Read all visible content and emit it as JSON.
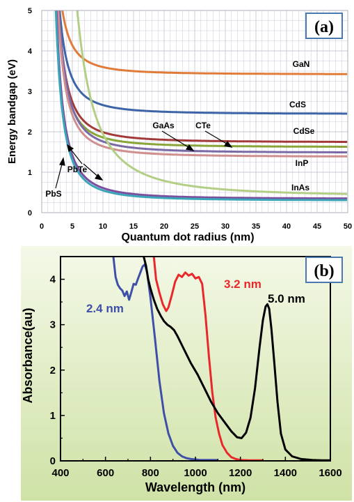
{
  "colors": {
    "GaN": "#e07b39",
    "CdS": "#3d64a6",
    "CdSe": "#a33a3a",
    "CTe": "#8aa53a",
    "GaAs": "#7a6aa6",
    "InP": "#d08f8f",
    "InAs": "#b3cf86",
    "PbTe": "#7b4f9e",
    "PbS": "#3aa6b8",
    "grid": "#c8c8d8",
    "panel_label_border": "#4a78b0",
    "bg_b_top": "#f4f9e8",
    "bg_b_bottom": "#cfe2a6",
    "curve_24": "#3f4fa8",
    "curve_32": "#e8282a",
    "curve_50": "#000000"
  },
  "chart_data": [
    {
      "type": "line",
      "panel_label": "(a)",
      "xlabel": "Quantum dot radius (nm)",
      "ylabel": "Energy bandgap (eV)",
      "xlim": [
        0,
        50
      ],
      "ylim": [
        0,
        5
      ],
      "x_ticks": [
        "0",
        "5",
        "10",
        "15",
        "20",
        "25",
        "30",
        "35",
        "40",
        "45",
        "50"
      ],
      "y_ticks": [
        "0",
        "1",
        "2",
        "3",
        "4",
        "5"
      ],
      "grid": true,
      "series": [
        {
          "name": "GaN",
          "bulk_eV": 3.42,
          "confinement": 18
        },
        {
          "name": "CdS",
          "bulk_eV": 2.44,
          "confinement": 22
        },
        {
          "name": "CdSe",
          "bulk_eV": 1.74,
          "confinement": 25
        },
        {
          "name": "CTe",
          "bulk_eV": 1.62,
          "confinement": 24
        },
        {
          "name": "GaAs",
          "bulk_eV": 1.48,
          "confinement": 28
        },
        {
          "name": "InP",
          "bulk_eV": 1.38,
          "confinement": 26
        },
        {
          "name": "InAs",
          "bulk_eV": 0.4,
          "confinement": 155
        },
        {
          "name": "PbTe",
          "bulk_eV": 0.34,
          "confinement": 27
        },
        {
          "name": "PbS",
          "bulk_eV": 0.3,
          "confinement": 25
        }
      ],
      "annotations": {
        "GaN": "GaN",
        "CdS": "CdS",
        "CdSe": "CdSe",
        "GaAs": "GaAs",
        "CTe": "CTe",
        "InP": "InP",
        "InAs": "InAs",
        "PbTe": "PbTe",
        "PbS": "PbS"
      }
    },
    {
      "type": "line",
      "panel_label": "(b)",
      "xlabel": "Wavelength (nm)",
      "ylabel": "Absorbance(au)",
      "xlim": [
        400,
        1600
      ],
      "ylim": [
        0,
        4.5
      ],
      "x_ticks": [
        "400",
        "600",
        "800",
        "1000",
        "1200",
        "1400",
        "1600"
      ],
      "y_ticks": [
        "0",
        "1",
        "2",
        "3",
        "4"
      ],
      "series": [
        {
          "name": "2.4 nm",
          "x": [
            635,
            645,
            655,
            665,
            675,
            685,
            695,
            705,
            715,
            725,
            735,
            745,
            755,
            765,
            775,
            785,
            800,
            820,
            840,
            860,
            880,
            900,
            920,
            940,
            960,
            980,
            1000,
            1020,
            1040,
            1060,
            1080,
            1100
          ],
          "y": [
            4.5,
            4.05,
            3.88,
            3.8,
            3.75,
            3.63,
            3.73,
            3.55,
            3.72,
            3.9,
            3.88,
            4.02,
            4.15,
            4.28,
            4.33,
            4.15,
            3.6,
            2.7,
            1.75,
            1.05,
            0.6,
            0.33,
            0.18,
            0.1,
            0.06,
            0.04,
            0.03,
            0.02,
            0.02,
            0.02,
            0.02,
            0.02
          ]
        },
        {
          "name": "3.2 nm",
          "x": [
            815,
            825,
            840,
            855,
            870,
            880,
            895,
            910,
            925,
            940,
            955,
            970,
            985,
            1000,
            1015,
            1030,
            1045,
            1060,
            1075,
            1090,
            1105,
            1120,
            1140,
            1160,
            1180,
            1200,
            1240,
            1300
          ],
          "y": [
            4.5,
            4.0,
            3.7,
            3.45,
            3.3,
            3.38,
            3.65,
            3.95,
            4.1,
            4.05,
            4.15,
            4.08,
            4.12,
            4.02,
            4.05,
            3.9,
            3.2,
            2.3,
            1.5,
            0.95,
            0.6,
            0.35,
            0.18,
            0.08,
            0.04,
            0.02,
            0.01,
            0.01
          ]
        },
        {
          "name": "5.0 nm",
          "x": [
            770,
            780,
            790,
            800,
            815,
            830,
            845,
            860,
            875,
            890,
            905,
            920,
            950,
            980,
            1010,
            1040,
            1070,
            1100,
            1130,
            1160,
            1185,
            1205,
            1225,
            1245,
            1265,
            1285,
            1300,
            1312,
            1320,
            1328,
            1338,
            1350,
            1365,
            1380,
            1400,
            1430,
            1470,
            1520,
            1560,
            1600
          ],
          "y": [
            4.5,
            4.3,
            4.0,
            3.8,
            3.55,
            3.35,
            3.2,
            3.08,
            3.0,
            2.95,
            2.88,
            2.75,
            2.45,
            2.15,
            1.9,
            1.6,
            1.3,
            1.05,
            0.85,
            0.65,
            0.52,
            0.5,
            0.62,
            0.95,
            1.6,
            2.5,
            3.1,
            3.4,
            3.45,
            3.35,
            2.9,
            2.2,
            1.3,
            0.6,
            0.25,
            0.1,
            0.04,
            0.02,
            0.01,
            0.01
          ]
        }
      ],
      "annotations": {
        "s24": "2.4 nm",
        "s32": "3.2 nm",
        "s50": "5.0 nm"
      }
    }
  ]
}
